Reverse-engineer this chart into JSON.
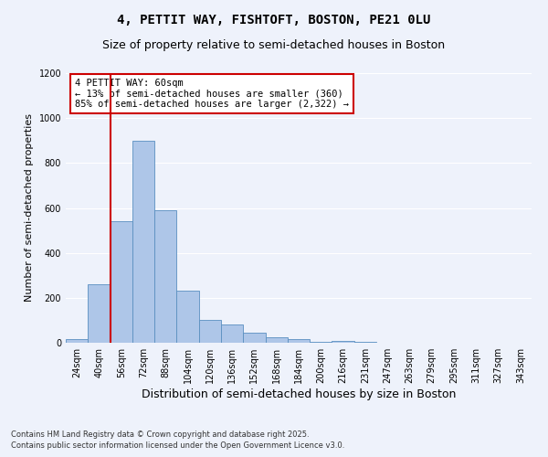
{
  "title": "4, PETTIT WAY, FISHTOFT, BOSTON, PE21 0LU",
  "subtitle": "Size of property relative to semi-detached houses in Boston",
  "xlabel": "Distribution of semi-detached houses by size in Boston",
  "ylabel": "Number of semi-detached properties",
  "categories": [
    "24sqm",
    "40sqm",
    "56sqm",
    "72sqm",
    "88sqm",
    "104sqm",
    "120sqm",
    "136sqm",
    "152sqm",
    "168sqm",
    "184sqm",
    "200sqm",
    "216sqm",
    "231sqm",
    "247sqm",
    "263sqm",
    "279sqm",
    "295sqm",
    "311sqm",
    "327sqm",
    "343sqm"
  ],
  "values": [
    15,
    260,
    540,
    900,
    590,
    230,
    100,
    80,
    45,
    25,
    15,
    5,
    10,
    5,
    2,
    0,
    0,
    0,
    2,
    0,
    0
  ],
  "bar_color": "#aec6e8",
  "bar_edge_color": "#5a8fc0",
  "annotation_text": "4 PETTIT WAY: 60sqm\n← 13% of semi-detached houses are smaller (360)\n85% of semi-detached houses are larger (2,322) →",
  "annotation_box_color": "#ffffff",
  "annotation_box_edge_color": "#cc0000",
  "redline_color": "#cc0000",
  "redline_x": 1.5,
  "ylim": [
    0,
    1200
  ],
  "yticks": [
    0,
    200,
    400,
    600,
    800,
    1000,
    1200
  ],
  "footnote1": "Contains HM Land Registry data © Crown copyright and database right 2025.",
  "footnote2": "Contains public sector information licensed under the Open Government Licence v3.0.",
  "background_color": "#eef2fb",
  "grid_color": "#ffffff",
  "title_fontsize": 10,
  "subtitle_fontsize": 9,
  "ylabel_fontsize": 8,
  "xlabel_fontsize": 9,
  "tick_fontsize": 7,
  "annotation_fontsize": 7.5,
  "footnote_fontsize": 6
}
